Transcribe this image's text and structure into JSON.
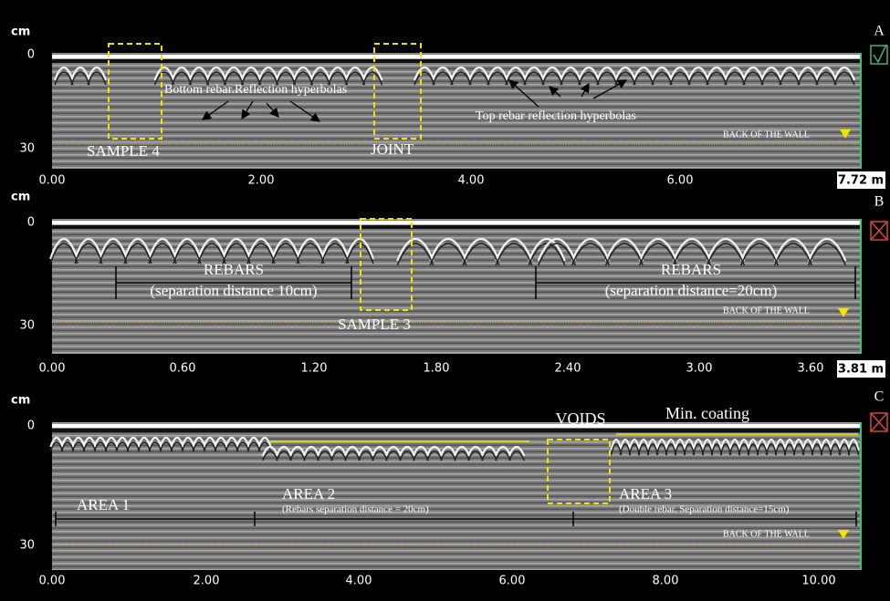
{
  "panels": [
    {
      "label": "A",
      "y_unit": "cm",
      "yticks": [
        "0",
        "30"
      ],
      "xticks": [
        "0.00",
        "2.00",
        "4.00",
        "6.00"
      ],
      "length": "7.72 m",
      "annotations": [
        "SAMPLE 4",
        "JOINT",
        "Bottom rebar.Reflection hyperbolas",
        "Top rebar reflection hyperbolas",
        "BACK OF THE WALL"
      ]
    },
    {
      "label": "B",
      "y_unit": "cm",
      "yticks": [
        "0",
        "30"
      ],
      "xticks": [
        "0.00",
        "0.60",
        "1.20",
        "1.80",
        "2.40",
        "3.00",
        "3.60"
      ],
      "length": "3.81 m",
      "annotations": [
        "REBARS",
        "(separation distance 10cm)",
        "SAMPLE 3",
        "REBARS",
        "(separation distance=20cm)",
        "BACK OF THE WALL"
      ]
    },
    {
      "label": "C",
      "y_unit": "cm",
      "yticks": [
        "0",
        "30"
      ],
      "xticks": [
        "0.00",
        "2.00",
        "4.00",
        "6.00",
        "8.00",
        "10.00"
      ],
      "annotations": [
        "VOIDS",
        "Min. coating",
        "AREA 1",
        "AREA 2",
        "(Rebars separation distance = 20cm)",
        "AREA 3",
        "(Double rebar. Separation distance=15cm)",
        "BACK OF THE WALL"
      ]
    }
  ]
}
